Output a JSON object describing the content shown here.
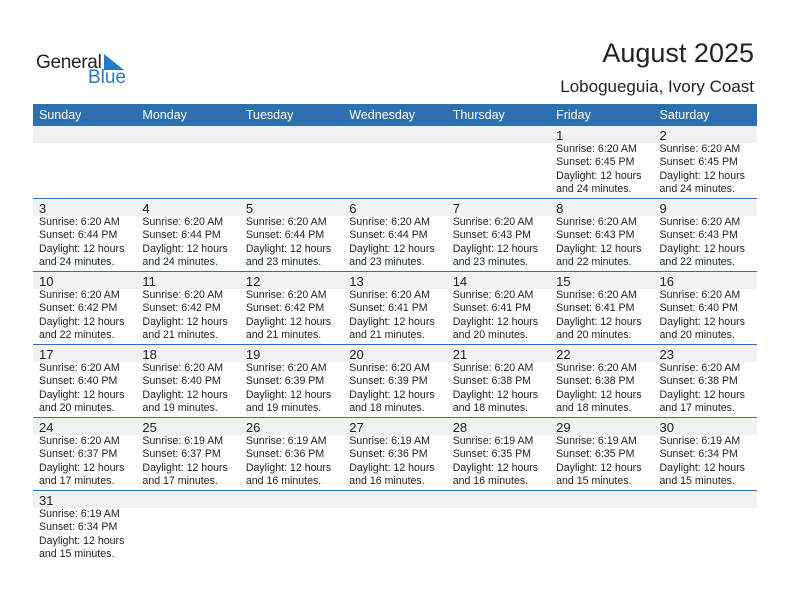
{
  "logo": {
    "word1": "General",
    "word2": "Blue"
  },
  "header": {
    "title": "August 2025",
    "location": "Lobogueguia, Ivory Coast"
  },
  "colors": {
    "accent": "#2e6fb0",
    "logo_blue": "#2a7abf",
    "day_band": "#f1f1f1"
  },
  "weekdays": [
    "Sunday",
    "Monday",
    "Tuesday",
    "Wednesday",
    "Thursday",
    "Friday",
    "Saturday"
  ],
  "weeks": [
    [
      null,
      null,
      null,
      null,
      null,
      {
        "day": "1",
        "sunrise": "Sunrise: 6:20 AM",
        "sunset": "Sunset: 6:45 PM",
        "daylight": "Daylight: 12 hours",
        "minutes": "and 24 minutes."
      },
      {
        "day": "2",
        "sunrise": "Sunrise: 6:20 AM",
        "sunset": "Sunset: 6:45 PM",
        "daylight": "Daylight: 12 hours",
        "minutes": "and 24 minutes."
      }
    ],
    [
      {
        "day": "3",
        "sunrise": "Sunrise: 6:20 AM",
        "sunset": "Sunset: 6:44 PM",
        "daylight": "Daylight: 12 hours",
        "minutes": "and 24 minutes."
      },
      {
        "day": "4",
        "sunrise": "Sunrise: 6:20 AM",
        "sunset": "Sunset: 6:44 PM",
        "daylight": "Daylight: 12 hours",
        "minutes": "and 24 minutes."
      },
      {
        "day": "5",
        "sunrise": "Sunrise: 6:20 AM",
        "sunset": "Sunset: 6:44 PM",
        "daylight": "Daylight: 12 hours",
        "minutes": "and 23 minutes."
      },
      {
        "day": "6",
        "sunrise": "Sunrise: 6:20 AM",
        "sunset": "Sunset: 6:44 PM",
        "daylight": "Daylight: 12 hours",
        "minutes": "and 23 minutes."
      },
      {
        "day": "7",
        "sunrise": "Sunrise: 6:20 AM",
        "sunset": "Sunset: 6:43 PM",
        "daylight": "Daylight: 12 hours",
        "minutes": "and 23 minutes."
      },
      {
        "day": "8",
        "sunrise": "Sunrise: 6:20 AM",
        "sunset": "Sunset: 6:43 PM",
        "daylight": "Daylight: 12 hours",
        "minutes": "and 22 minutes."
      },
      {
        "day": "9",
        "sunrise": "Sunrise: 6:20 AM",
        "sunset": "Sunset: 6:43 PM",
        "daylight": "Daylight: 12 hours",
        "minutes": "and 22 minutes."
      }
    ],
    [
      {
        "day": "10",
        "sunrise": "Sunrise: 6:20 AM",
        "sunset": "Sunset: 6:42 PM",
        "daylight": "Daylight: 12 hours",
        "minutes": "and 22 minutes."
      },
      {
        "day": "11",
        "sunrise": "Sunrise: 6:20 AM",
        "sunset": "Sunset: 6:42 PM",
        "daylight": "Daylight: 12 hours",
        "minutes": "and 21 minutes."
      },
      {
        "day": "12",
        "sunrise": "Sunrise: 6:20 AM",
        "sunset": "Sunset: 6:42 PM",
        "daylight": "Daylight: 12 hours",
        "minutes": "and 21 minutes."
      },
      {
        "day": "13",
        "sunrise": "Sunrise: 6:20 AM",
        "sunset": "Sunset: 6:41 PM",
        "daylight": "Daylight: 12 hours",
        "minutes": "and 21 minutes."
      },
      {
        "day": "14",
        "sunrise": "Sunrise: 6:20 AM",
        "sunset": "Sunset: 6:41 PM",
        "daylight": "Daylight: 12 hours",
        "minutes": "and 20 minutes."
      },
      {
        "day": "15",
        "sunrise": "Sunrise: 6:20 AM",
        "sunset": "Sunset: 6:41 PM",
        "daylight": "Daylight: 12 hours",
        "minutes": "and 20 minutes."
      },
      {
        "day": "16",
        "sunrise": "Sunrise: 6:20 AM",
        "sunset": "Sunset: 6:40 PM",
        "daylight": "Daylight: 12 hours",
        "minutes": "and 20 minutes."
      }
    ],
    [
      {
        "day": "17",
        "sunrise": "Sunrise: 6:20 AM",
        "sunset": "Sunset: 6:40 PM",
        "daylight": "Daylight: 12 hours",
        "minutes": "and 20 minutes."
      },
      {
        "day": "18",
        "sunrise": "Sunrise: 6:20 AM",
        "sunset": "Sunset: 6:40 PM",
        "daylight": "Daylight: 12 hours",
        "minutes": "and 19 minutes."
      },
      {
        "day": "19",
        "sunrise": "Sunrise: 6:20 AM",
        "sunset": "Sunset: 6:39 PM",
        "daylight": "Daylight: 12 hours",
        "minutes": "and 19 minutes."
      },
      {
        "day": "20",
        "sunrise": "Sunrise: 6:20 AM",
        "sunset": "Sunset: 6:39 PM",
        "daylight": "Daylight: 12 hours",
        "minutes": "and 18 minutes."
      },
      {
        "day": "21",
        "sunrise": "Sunrise: 6:20 AM",
        "sunset": "Sunset: 6:38 PM",
        "daylight": "Daylight: 12 hours",
        "minutes": "and 18 minutes."
      },
      {
        "day": "22",
        "sunrise": "Sunrise: 6:20 AM",
        "sunset": "Sunset: 6:38 PM",
        "daylight": "Daylight: 12 hours",
        "minutes": "and 18 minutes."
      },
      {
        "day": "23",
        "sunrise": "Sunrise: 6:20 AM",
        "sunset": "Sunset: 6:38 PM",
        "daylight": "Daylight: 12 hours",
        "minutes": "and 17 minutes."
      }
    ],
    [
      {
        "day": "24",
        "sunrise": "Sunrise: 6:20 AM",
        "sunset": "Sunset: 6:37 PM",
        "daylight": "Daylight: 12 hours",
        "minutes": "and 17 minutes."
      },
      {
        "day": "25",
        "sunrise": "Sunrise: 6:19 AM",
        "sunset": "Sunset: 6:37 PM",
        "daylight": "Daylight: 12 hours",
        "minutes": "and 17 minutes."
      },
      {
        "day": "26",
        "sunrise": "Sunrise: 6:19 AM",
        "sunset": "Sunset: 6:36 PM",
        "daylight": "Daylight: 12 hours",
        "minutes": "and 16 minutes."
      },
      {
        "day": "27",
        "sunrise": "Sunrise: 6:19 AM",
        "sunset": "Sunset: 6:36 PM",
        "daylight": "Daylight: 12 hours",
        "minutes": "and 16 minutes."
      },
      {
        "day": "28",
        "sunrise": "Sunrise: 6:19 AM",
        "sunset": "Sunset: 6:35 PM",
        "daylight": "Daylight: 12 hours",
        "minutes": "and 16 minutes."
      },
      {
        "day": "29",
        "sunrise": "Sunrise: 6:19 AM",
        "sunset": "Sunset: 6:35 PM",
        "daylight": "Daylight: 12 hours",
        "minutes": "and 15 minutes."
      },
      {
        "day": "30",
        "sunrise": "Sunrise: 6:19 AM",
        "sunset": "Sunset: 6:34 PM",
        "daylight": "Daylight: 12 hours",
        "minutes": "and 15 minutes."
      }
    ],
    [
      {
        "day": "31",
        "sunrise": "Sunrise: 6:19 AM",
        "sunset": "Sunset: 6:34 PM",
        "daylight": "Daylight: 12 hours",
        "minutes": "and 15 minutes."
      },
      null,
      null,
      null,
      null,
      null,
      null
    ]
  ]
}
